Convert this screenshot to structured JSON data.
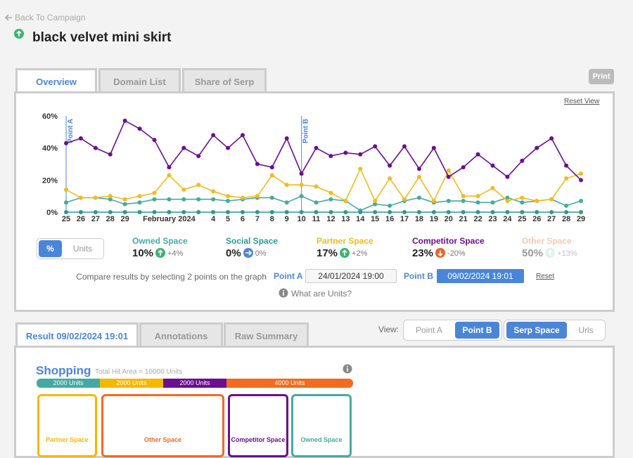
{
  "header": {
    "back": "Back To Campaign",
    "title": "black velvet mini skirt"
  },
  "tabs": [
    "Overview",
    "Domain List",
    "Share of Serp"
  ],
  "print": "Print",
  "reset_view": "Reset View",
  "chart_data": {
    "type": "line",
    "categories": [
      "25",
      "26",
      "27",
      "28",
      "29",
      null,
      null,
      "February 2024",
      null,
      null,
      "4",
      "5",
      "6",
      "7",
      "8",
      "9",
      "10",
      "11",
      "12",
      "13",
      "14",
      "15",
      "16",
      "17",
      "18",
      "19",
      "20",
      "21",
      "22",
      "23",
      "24",
      "25",
      "26",
      "27",
      "28",
      "29"
    ],
    "ylim": [
      0,
      60
    ],
    "yticks": [
      {
        "value": 0,
        "label": "0%"
      },
      {
        "value": 20,
        "label": "20%"
      },
      {
        "value": 40,
        "label": "40%"
      },
      {
        "value": 60,
        "label": "60%"
      }
    ],
    "markers": [
      {
        "label": "Point A",
        "index": 0
      },
      {
        "label": "Point B",
        "index": 16
      }
    ],
    "series": [
      {
        "name": "Owned Space",
        "color": "#45a9a3",
        "current": "10%",
        "change": "+4%",
        "trend": "up",
        "values": [
          6,
          9,
          9,
          8,
          5,
          6,
          8,
          8,
          8,
          8,
          8,
          7,
          8,
          9,
          9,
          6,
          10,
          6,
          8,
          7,
          1,
          5,
          4,
          7,
          9,
          6,
          7,
          7,
          6,
          6,
          9,
          6,
          7,
          8,
          4,
          7
        ]
      },
      {
        "name": "Social Space",
        "color": "#2a9a92",
        "current": "0%",
        "change": "0%",
        "trend": "flat",
        "values": [
          0,
          0,
          0,
          0,
          0,
          0,
          0,
          0,
          0,
          0,
          0,
          0,
          0,
          0,
          0,
          0,
          0,
          0,
          0,
          0,
          0,
          0,
          0,
          0,
          0,
          0,
          0,
          0,
          0,
          0,
          0,
          0,
          0,
          0,
          0,
          0
        ]
      },
      {
        "name": "Partner Space",
        "color": "#f2bb1d",
        "current": "17%",
        "change": "+2%",
        "trend": "up",
        "values": [
          14,
          9,
          9,
          10,
          8,
          10,
          12,
          23,
          14,
          17,
          13,
          10,
          9,
          10,
          23,
          17,
          17,
          16,
          12,
          7,
          27,
          7,
          21,
          8,
          22,
          7,
          26,
          10,
          10,
          15,
          7,
          9,
          7,
          8,
          21,
          24
        ]
      },
      {
        "name": "Competitor Space",
        "color": "#6a0f8e",
        "current": "23%",
        "change": "-20%",
        "trend": "down",
        "values": [
          43,
          46,
          40,
          36,
          57,
          52,
          45,
          28,
          40,
          35,
          48,
          40,
          48,
          30,
          28,
          46,
          24,
          40,
          35,
          37,
          36,
          41,
          29,
          41,
          27,
          40,
          22,
          28,
          36,
          29,
          22,
          32,
          40,
          46,
          29,
          20
        ]
      },
      {
        "name": "Other Space",
        "color": "#f7c9b3",
        "current": "50%",
        "change": "+13%",
        "trend": "up-faded"
      }
    ]
  },
  "units_toggle": [
    "%",
    "Units"
  ],
  "compare": {
    "prompt": "Compare results by selecting 2 points on the graph",
    "point_a_label": "Point A",
    "point_a": "24/01/2024 19:00",
    "point_b_label": "Point B",
    "point_b": "09/02/2024 19:01",
    "reset": "Reset",
    "help": "What are Units?"
  },
  "result": {
    "tabs": [
      "Result 09/02/2024 19:01",
      "Annotations",
      "Raw Summary"
    ],
    "view_label": "View:",
    "view_points": [
      "Point A",
      "Point B"
    ],
    "view_modes": [
      "Serp Space",
      "Urls"
    ],
    "section": "Shopping",
    "total": "Total Hit Area = 10000 Units",
    "segments": [
      {
        "value": 2000,
        "label": "2000 Units",
        "color": "#45a9a3"
      },
      {
        "value": 2000,
        "label": "2000 Units",
        "color": "#f5b800"
      },
      {
        "value": 2000,
        "label": "2000 Units",
        "color": "#6a0f8e"
      },
      {
        "value": 4000,
        "label": "4000 Units",
        "color": "#f26b21"
      }
    ],
    "boxes": [
      {
        "label": "Partner Space",
        "color": "#f5b800"
      },
      {
        "label": "Other Space",
        "color": "#f26b21"
      },
      {
        "label": "Competitor Space",
        "color": "#6a0f8e"
      },
      {
        "label": "Owned Space",
        "color": "#45a9a3"
      }
    ]
  }
}
